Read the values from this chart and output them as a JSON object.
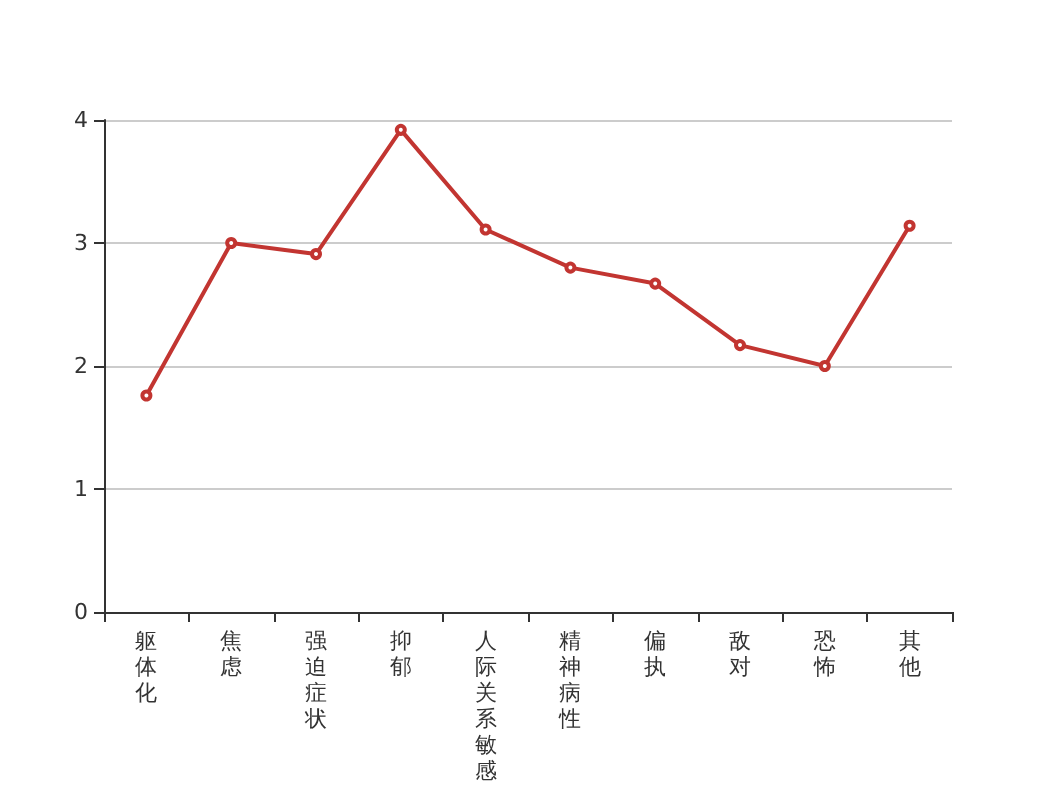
{
  "chart_data": {
    "type": "line",
    "categories": [
      "躯体化",
      "焦虑",
      "强迫症状",
      "抑郁",
      "人际关系敏感",
      "精神病性",
      "偏执",
      "敌对",
      "恐怖",
      "其他"
    ],
    "series": [
      {
        "color": "#c23531",
        "values": [
          1.76,
          3.0,
          2.91,
          3.92,
          3.11,
          2.8,
          2.67,
          2.17,
          2.0,
          3.14
        ]
      }
    ],
    "ylim": [
      0,
      4
    ],
    "yticks": [
      0,
      1,
      2,
      3,
      4
    ],
    "grid": "y",
    "marker": "circle",
    "line_style": "solid"
  }
}
